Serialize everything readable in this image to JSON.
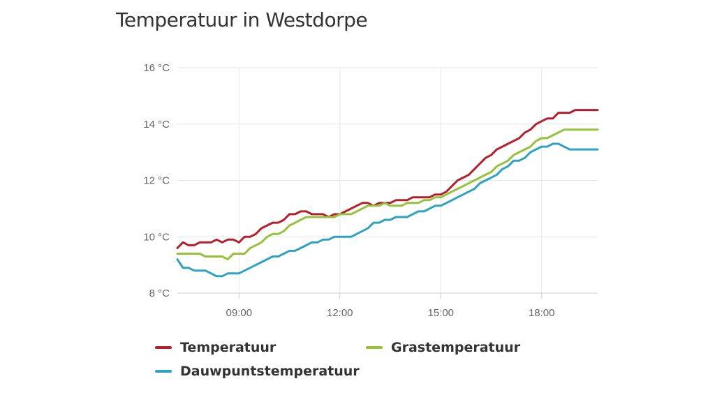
{
  "chart_data": {
    "type": "line",
    "title": "Temperatuur in Westdorpe",
    "y_unit": "°C",
    "ylim": [
      8,
      16
    ],
    "y_ticks": [
      8,
      10,
      12,
      14,
      16
    ],
    "y_tick_labels": [
      "8 °C",
      "10 °C",
      "12 °C",
      "14 °C",
      "16 °C"
    ],
    "xlim": [
      "07:10",
      "19:40"
    ],
    "x_ticks": [
      "09:00",
      "12:00",
      "15:00",
      "18:00"
    ],
    "grid": true,
    "legend_position": "bottom",
    "x": [
      "07:10",
      "07:20",
      "07:30",
      "07:40",
      "07:50",
      "08:00",
      "08:10",
      "08:20",
      "08:30",
      "08:40",
      "08:50",
      "09:00",
      "09:10",
      "09:20",
      "09:30",
      "09:40",
      "09:50",
      "10:00",
      "10:10",
      "10:20",
      "10:30",
      "10:40",
      "10:50",
      "11:00",
      "11:10",
      "11:20",
      "11:30",
      "11:40",
      "11:50",
      "12:00",
      "12:10",
      "12:20",
      "12:30",
      "12:40",
      "12:50",
      "13:00",
      "13:10",
      "13:20",
      "13:30",
      "13:40",
      "13:50",
      "14:00",
      "14:10",
      "14:20",
      "14:30",
      "14:40",
      "14:50",
      "15:00",
      "15:10",
      "15:20",
      "15:30",
      "15:40",
      "15:50",
      "16:00",
      "16:10",
      "16:20",
      "16:30",
      "16:40",
      "16:50",
      "17:00",
      "17:10",
      "17:20",
      "17:30",
      "17:40",
      "17:50",
      "18:00",
      "18:10",
      "18:20",
      "18:30",
      "18:40",
      "18:50",
      "19:00",
      "19:10",
      "19:20",
      "19:30",
      "19:40"
    ],
    "series": [
      {
        "name": "Temperatuur",
        "color": "#b31f2a",
        "values": [
          9.6,
          9.8,
          9.7,
          9.7,
          9.8,
          9.8,
          9.8,
          9.9,
          9.8,
          9.9,
          9.9,
          9.8,
          10.0,
          10.0,
          10.1,
          10.3,
          10.4,
          10.5,
          10.5,
          10.6,
          10.8,
          10.8,
          10.9,
          10.9,
          10.8,
          10.8,
          10.8,
          10.7,
          10.8,
          10.8,
          10.9,
          11.0,
          11.1,
          11.2,
          11.2,
          11.1,
          11.2,
          11.2,
          11.2,
          11.3,
          11.3,
          11.3,
          11.4,
          11.4,
          11.4,
          11.4,
          11.5,
          11.5,
          11.6,
          11.8,
          12.0,
          12.1,
          12.2,
          12.4,
          12.6,
          12.8,
          12.9,
          13.1,
          13.2,
          13.3,
          13.4,
          13.5,
          13.7,
          13.8,
          14.0,
          14.1,
          14.2,
          14.2,
          14.4,
          14.4,
          14.4,
          14.5,
          14.5,
          14.5,
          14.5,
          14.5
        ]
      },
      {
        "name": "Grastemperatuur",
        "color": "#96c13c",
        "values": [
          9.4,
          9.4,
          9.4,
          9.4,
          9.4,
          9.3,
          9.3,
          9.3,
          9.3,
          9.2,
          9.4,
          9.4,
          9.4,
          9.6,
          9.7,
          9.8,
          10.0,
          10.1,
          10.1,
          10.2,
          10.4,
          10.5,
          10.6,
          10.7,
          10.7,
          10.7,
          10.7,
          10.7,
          10.7,
          10.8,
          10.8,
          10.8,
          10.9,
          11.0,
          11.1,
          11.1,
          11.1,
          11.2,
          11.1,
          11.1,
          11.1,
          11.2,
          11.2,
          11.2,
          11.3,
          11.3,
          11.4,
          11.4,
          11.5,
          11.6,
          11.7,
          11.8,
          11.9,
          12.0,
          12.1,
          12.2,
          12.3,
          12.5,
          12.6,
          12.7,
          12.9,
          13.0,
          13.1,
          13.2,
          13.4,
          13.5,
          13.5,
          13.6,
          13.7,
          13.8,
          13.8,
          13.8,
          13.8,
          13.8,
          13.8,
          13.8
        ]
      },
      {
        "name": "Dauwpuntstemperatuur",
        "color": "#2fa1c1",
        "values": [
          9.2,
          8.9,
          8.9,
          8.8,
          8.8,
          8.8,
          8.7,
          8.6,
          8.6,
          8.7,
          8.7,
          8.7,
          8.8,
          8.9,
          9.0,
          9.1,
          9.2,
          9.3,
          9.3,
          9.4,
          9.5,
          9.5,
          9.6,
          9.7,
          9.8,
          9.8,
          9.9,
          9.9,
          10.0,
          10.0,
          10.0,
          10.0,
          10.1,
          10.2,
          10.3,
          10.5,
          10.5,
          10.6,
          10.6,
          10.7,
          10.7,
          10.7,
          10.8,
          10.9,
          10.9,
          11.0,
          11.1,
          11.1,
          11.2,
          11.3,
          11.4,
          11.5,
          11.6,
          11.7,
          11.9,
          12.0,
          12.1,
          12.2,
          12.4,
          12.5,
          12.7,
          12.7,
          12.8,
          13.0,
          13.1,
          13.2,
          13.2,
          13.3,
          13.3,
          13.2,
          13.1,
          13.1,
          13.1,
          13.1,
          13.1,
          13.1
        ]
      }
    ]
  }
}
